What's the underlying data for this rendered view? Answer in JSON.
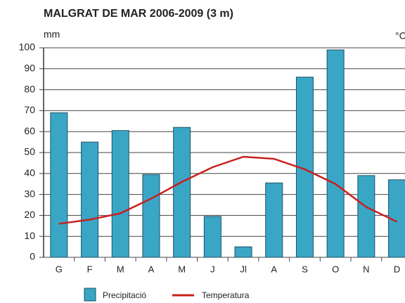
{
  "chart_data": {
    "type": "bar",
    "title": "MALGRAT DE MAR 2006-2009 (3 m)",
    "y_label": "mm",
    "y2_label": "°C",
    "categories": [
      "G",
      "F",
      "M",
      "A",
      "M",
      "J",
      "Jl",
      "A",
      "S",
      "O",
      "N",
      "D"
    ],
    "series": [
      {
        "name": "Precipitació",
        "color": "#3aa6c6",
        "values": [
          69,
          55,
          60.5,
          39.5,
          62,
          19.5,
          5,
          35.5,
          86,
          99,
          39,
          37
        ]
      },
      {
        "name": "Temperatura",
        "color": "#c8201e",
        "axis": "y2",
        "values": [
          8,
          9,
          10.5,
          14,
          18,
          21.5,
          24,
          23.5,
          21,
          17.5,
          12,
          8.5
        ]
      }
    ],
    "ylim": [
      0,
      100
    ],
    "yticks": [
      0,
      10,
      20,
      30,
      40,
      50,
      60,
      70,
      80,
      90,
      100
    ],
    "y2lim": [
      0,
      50
    ],
    "grid": true
  }
}
